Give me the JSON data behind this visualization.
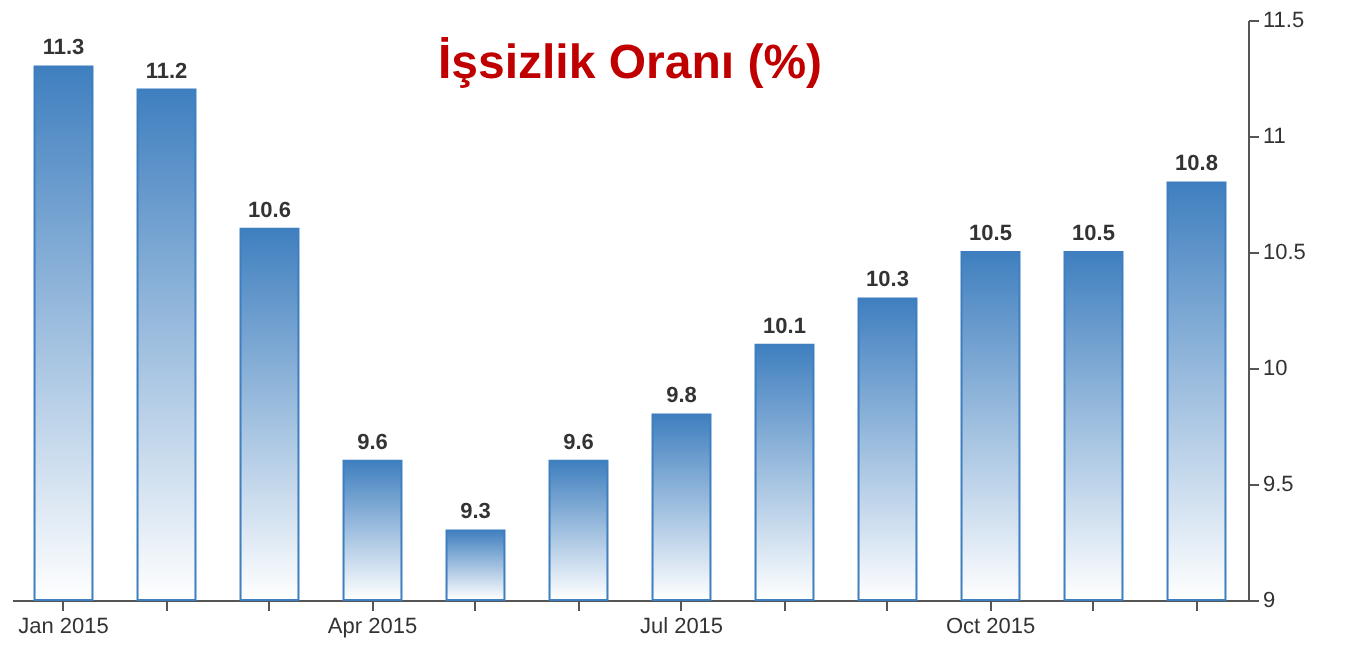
{
  "chart_data": {
    "type": "bar",
    "title": "İşsizlik Oranı (%)",
    "categories": [
      "Jan 2015",
      null,
      null,
      "Apr 2015",
      null,
      null,
      "Jul 2015",
      null,
      null,
      "Oct 2015",
      null,
      null
    ],
    "values": [
      11.3,
      11.2,
      10.6,
      9.6,
      9.3,
      9.6,
      9.8,
      10.1,
      10.3,
      10.5,
      10.5,
      10.8
    ],
    "color": "#3f7fbf",
    "ylim": [
      9,
      11.5
    ],
    "yticks": [
      9,
      9.5,
      10,
      10.5,
      11,
      11.5
    ],
    "data_labels": true,
    "grid": false
  }
}
